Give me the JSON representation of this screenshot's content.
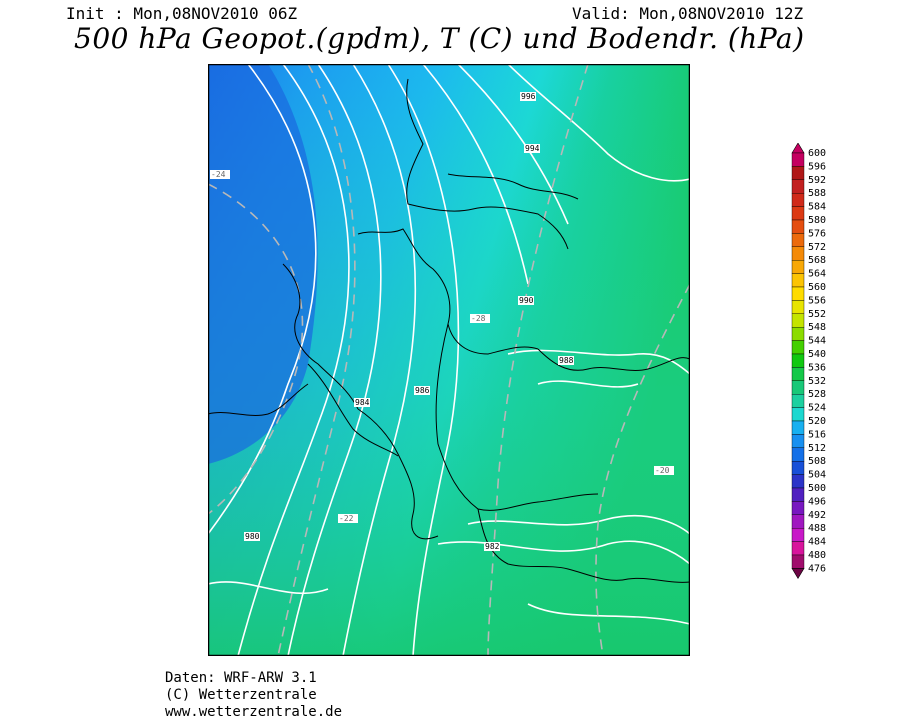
{
  "header": {
    "init": "Init : Mon,08NOV2010 06Z",
    "valid": "Valid: Mon,08NOV2010 12Z",
    "title": "500 hPa Geopot.(gpdm), T (C) und Bodendr. (hPa)"
  },
  "legend": {
    "levels": [
      "600",
      "596",
      "592",
      "588",
      "584",
      "580",
      "576",
      "572",
      "568",
      "564",
      "560",
      "556",
      "552",
      "548",
      "544",
      "540",
      "536",
      "532",
      "528",
      "524",
      "520",
      "516",
      "512",
      "508",
      "504",
      "500",
      "496",
      "492",
      "488",
      "484",
      "480",
      "476"
    ],
    "colors": [
      "#c40060",
      "#b01818",
      "#c22020",
      "#d02a1a",
      "#dc3a14",
      "#e44e10",
      "#ec6a0c",
      "#f48a08",
      "#f8a806",
      "#fcc404",
      "#ffdc00",
      "#e8e400",
      "#c4e400",
      "#8cdc00",
      "#44d000",
      "#10c810",
      "#14c848",
      "#18c878",
      "#1cd0a0",
      "#1cd8d0",
      "#18b0f0",
      "#1890f0",
      "#1470e8",
      "#1850d8",
      "#2c34c8",
      "#5020c0",
      "#7818c0",
      "#a018c0",
      "#c818c8",
      "#d8149c",
      "#a00c6c",
      "#6c0444"
    ]
  },
  "map": {
    "pressure_labels": [
      "996",
      "994",
      "990",
      "988",
      "986",
      "984",
      "982",
      "980"
    ],
    "temperature_labels": [
      "-24",
      "-22",
      "-20",
      "-28"
    ]
  },
  "footer": {
    "line1": "Daten: WRF-ARW 3.1",
    "line2": "(C) Wetterzentrale",
    "line3": "www.wetterzentrale.de"
  }
}
